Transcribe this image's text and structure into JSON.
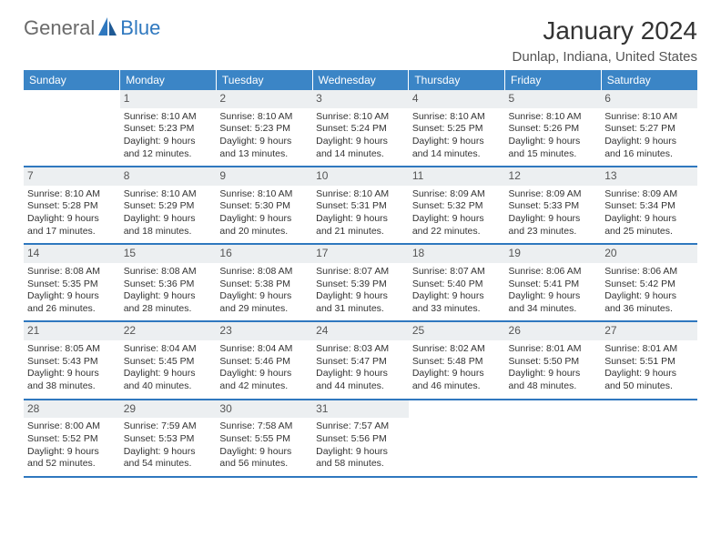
{
  "brand": {
    "part1": "General",
    "part2": "Blue"
  },
  "header": {
    "title": "January 2024",
    "location": "Dunlap, Indiana, United States"
  },
  "colors": {
    "header_bg": "#3b85c6",
    "header_text": "#ffffff",
    "row_border": "#2f78bf",
    "daynum_bg": "#eceff1",
    "body_text": "#333333",
    "logo_gray": "#6a6a6a",
    "logo_blue": "#2f78bf",
    "page_bg": "#ffffff",
    "title_fontsize": 28,
    "subtitle_fontsize": 15,
    "th_fontsize": 12,
    "cell_fontsize": 10.5
  },
  "weekdays": [
    "Sunday",
    "Monday",
    "Tuesday",
    "Wednesday",
    "Thursday",
    "Friday",
    "Saturday"
  ],
  "weeks": [
    [
      null,
      {
        "n": "1",
        "sunrise": "Sunrise: 8:10 AM",
        "sunset": "Sunset: 5:23 PM",
        "d1": "Daylight: 9 hours",
        "d2": "and 12 minutes."
      },
      {
        "n": "2",
        "sunrise": "Sunrise: 8:10 AM",
        "sunset": "Sunset: 5:23 PM",
        "d1": "Daylight: 9 hours",
        "d2": "and 13 minutes."
      },
      {
        "n": "3",
        "sunrise": "Sunrise: 8:10 AM",
        "sunset": "Sunset: 5:24 PM",
        "d1": "Daylight: 9 hours",
        "d2": "and 14 minutes."
      },
      {
        "n": "4",
        "sunrise": "Sunrise: 8:10 AM",
        "sunset": "Sunset: 5:25 PM",
        "d1": "Daylight: 9 hours",
        "d2": "and 14 minutes."
      },
      {
        "n": "5",
        "sunrise": "Sunrise: 8:10 AM",
        "sunset": "Sunset: 5:26 PM",
        "d1": "Daylight: 9 hours",
        "d2": "and 15 minutes."
      },
      {
        "n": "6",
        "sunrise": "Sunrise: 8:10 AM",
        "sunset": "Sunset: 5:27 PM",
        "d1": "Daylight: 9 hours",
        "d2": "and 16 minutes."
      }
    ],
    [
      {
        "n": "7",
        "sunrise": "Sunrise: 8:10 AM",
        "sunset": "Sunset: 5:28 PM",
        "d1": "Daylight: 9 hours",
        "d2": "and 17 minutes."
      },
      {
        "n": "8",
        "sunrise": "Sunrise: 8:10 AM",
        "sunset": "Sunset: 5:29 PM",
        "d1": "Daylight: 9 hours",
        "d2": "and 18 minutes."
      },
      {
        "n": "9",
        "sunrise": "Sunrise: 8:10 AM",
        "sunset": "Sunset: 5:30 PM",
        "d1": "Daylight: 9 hours",
        "d2": "and 20 minutes."
      },
      {
        "n": "10",
        "sunrise": "Sunrise: 8:10 AM",
        "sunset": "Sunset: 5:31 PM",
        "d1": "Daylight: 9 hours",
        "d2": "and 21 minutes."
      },
      {
        "n": "11",
        "sunrise": "Sunrise: 8:09 AM",
        "sunset": "Sunset: 5:32 PM",
        "d1": "Daylight: 9 hours",
        "d2": "and 22 minutes."
      },
      {
        "n": "12",
        "sunrise": "Sunrise: 8:09 AM",
        "sunset": "Sunset: 5:33 PM",
        "d1": "Daylight: 9 hours",
        "d2": "and 23 minutes."
      },
      {
        "n": "13",
        "sunrise": "Sunrise: 8:09 AM",
        "sunset": "Sunset: 5:34 PM",
        "d1": "Daylight: 9 hours",
        "d2": "and 25 minutes."
      }
    ],
    [
      {
        "n": "14",
        "sunrise": "Sunrise: 8:08 AM",
        "sunset": "Sunset: 5:35 PM",
        "d1": "Daylight: 9 hours",
        "d2": "and 26 minutes."
      },
      {
        "n": "15",
        "sunrise": "Sunrise: 8:08 AM",
        "sunset": "Sunset: 5:36 PM",
        "d1": "Daylight: 9 hours",
        "d2": "and 28 minutes."
      },
      {
        "n": "16",
        "sunrise": "Sunrise: 8:08 AM",
        "sunset": "Sunset: 5:38 PM",
        "d1": "Daylight: 9 hours",
        "d2": "and 29 minutes."
      },
      {
        "n": "17",
        "sunrise": "Sunrise: 8:07 AM",
        "sunset": "Sunset: 5:39 PM",
        "d1": "Daylight: 9 hours",
        "d2": "and 31 minutes."
      },
      {
        "n": "18",
        "sunrise": "Sunrise: 8:07 AM",
        "sunset": "Sunset: 5:40 PM",
        "d1": "Daylight: 9 hours",
        "d2": "and 33 minutes."
      },
      {
        "n": "19",
        "sunrise": "Sunrise: 8:06 AM",
        "sunset": "Sunset: 5:41 PM",
        "d1": "Daylight: 9 hours",
        "d2": "and 34 minutes."
      },
      {
        "n": "20",
        "sunrise": "Sunrise: 8:06 AM",
        "sunset": "Sunset: 5:42 PM",
        "d1": "Daylight: 9 hours",
        "d2": "and 36 minutes."
      }
    ],
    [
      {
        "n": "21",
        "sunrise": "Sunrise: 8:05 AM",
        "sunset": "Sunset: 5:43 PM",
        "d1": "Daylight: 9 hours",
        "d2": "and 38 minutes."
      },
      {
        "n": "22",
        "sunrise": "Sunrise: 8:04 AM",
        "sunset": "Sunset: 5:45 PM",
        "d1": "Daylight: 9 hours",
        "d2": "and 40 minutes."
      },
      {
        "n": "23",
        "sunrise": "Sunrise: 8:04 AM",
        "sunset": "Sunset: 5:46 PM",
        "d1": "Daylight: 9 hours",
        "d2": "and 42 minutes."
      },
      {
        "n": "24",
        "sunrise": "Sunrise: 8:03 AM",
        "sunset": "Sunset: 5:47 PM",
        "d1": "Daylight: 9 hours",
        "d2": "and 44 minutes."
      },
      {
        "n": "25",
        "sunrise": "Sunrise: 8:02 AM",
        "sunset": "Sunset: 5:48 PM",
        "d1": "Daylight: 9 hours",
        "d2": "and 46 minutes."
      },
      {
        "n": "26",
        "sunrise": "Sunrise: 8:01 AM",
        "sunset": "Sunset: 5:50 PM",
        "d1": "Daylight: 9 hours",
        "d2": "and 48 minutes."
      },
      {
        "n": "27",
        "sunrise": "Sunrise: 8:01 AM",
        "sunset": "Sunset: 5:51 PM",
        "d1": "Daylight: 9 hours",
        "d2": "and 50 minutes."
      }
    ],
    [
      {
        "n": "28",
        "sunrise": "Sunrise: 8:00 AM",
        "sunset": "Sunset: 5:52 PM",
        "d1": "Daylight: 9 hours",
        "d2": "and 52 minutes."
      },
      {
        "n": "29",
        "sunrise": "Sunrise: 7:59 AM",
        "sunset": "Sunset: 5:53 PM",
        "d1": "Daylight: 9 hours",
        "d2": "and 54 minutes."
      },
      {
        "n": "30",
        "sunrise": "Sunrise: 7:58 AM",
        "sunset": "Sunset: 5:55 PM",
        "d1": "Daylight: 9 hours",
        "d2": "and 56 minutes."
      },
      {
        "n": "31",
        "sunrise": "Sunrise: 7:57 AM",
        "sunset": "Sunset: 5:56 PM",
        "d1": "Daylight: 9 hours",
        "d2": "and 58 minutes."
      },
      null,
      null,
      null
    ]
  ]
}
